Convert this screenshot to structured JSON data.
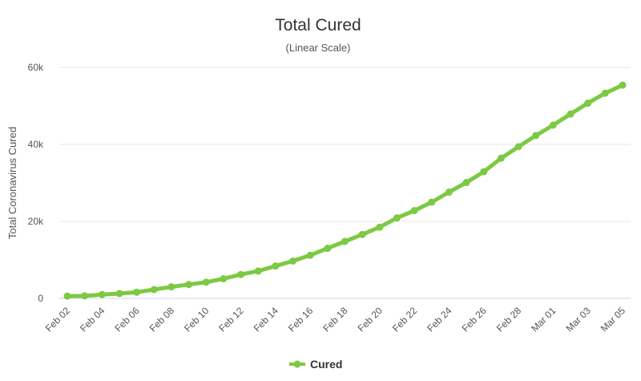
{
  "chart_data": {
    "type": "line",
    "title": "Total Cured",
    "subtitle": "(Linear Scale)",
    "ylabel": "Total Coronavirus Cured",
    "xlabel": "",
    "ylim": [
      0,
      60000
    ],
    "yticks": [
      0,
      20000,
      40000,
      60000
    ],
    "ytick_labels": [
      "0",
      "20k",
      "40k",
      "60k"
    ],
    "grid": true,
    "legend_position": "bottom-center",
    "x": [
      "Feb 02",
      "Feb 03",
      "Feb 04",
      "Feb 05",
      "Feb 06",
      "Feb 07",
      "Feb 08",
      "Feb 09",
      "Feb 10",
      "Feb 11",
      "Feb 12",
      "Feb 13",
      "Feb 14",
      "Feb 15",
      "Feb 16",
      "Feb 17",
      "Feb 18",
      "Feb 19",
      "Feb 20",
      "Feb 21",
      "Feb 22",
      "Feb 23",
      "Feb 24",
      "Feb 25",
      "Feb 26",
      "Feb 27",
      "Feb 28",
      "Feb 29",
      "Mar 01",
      "Mar 02",
      "Mar 03",
      "Mar 04",
      "Mar 05"
    ],
    "x_tick_labels": [
      "Feb 02",
      "Feb 04",
      "Feb 06",
      "Feb 08",
      "Feb 10",
      "Feb 12",
      "Feb 14",
      "Feb 16",
      "Feb 18",
      "Feb 20",
      "Feb 22",
      "Feb 24",
      "Feb 26",
      "Feb 28",
      "Mar 01",
      "Mar 03",
      "Mar 05"
    ],
    "series": [
      {
        "name": "Cured",
        "color": "#7cc943",
        "values": [
          600,
          650,
          1000,
          1250,
          1600,
          2300,
          3000,
          3600,
          4200,
          5100,
          6200,
          7100,
          8400,
          9700,
          11200,
          13000,
          14800,
          16600,
          18500,
          20900,
          22800,
          25000,
          27600,
          30100,
          32900,
          36400,
          39400,
          42300,
          45000,
          47900,
          50700,
          53300,
          55400
        ]
      }
    ]
  }
}
